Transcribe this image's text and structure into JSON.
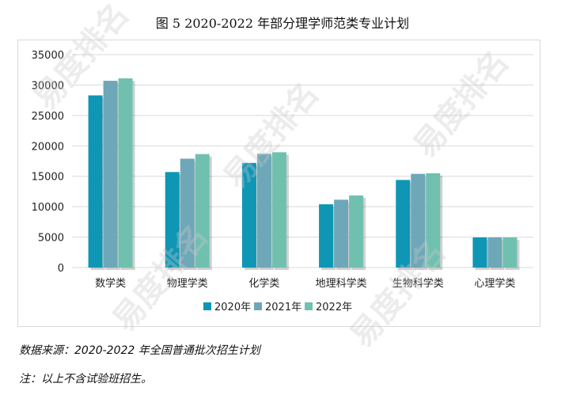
{
  "title": "图 5 2020-2022 年部分理学师范类专业计划",
  "chart_data": {
    "type": "bar",
    "categories": [
      "数学类",
      "物理学类",
      "化学类",
      "地理科学类",
      "生物科学类",
      "心理学类"
    ],
    "series": [
      {
        "name": "2020年",
        "color": "#0f96b4",
        "values": [
          28300,
          15700,
          17200,
          10400,
          14400,
          4950
        ]
      },
      {
        "name": "2021年",
        "color": "#6ea8b8",
        "values": [
          30700,
          17900,
          18700,
          11150,
          15400,
          4950
        ]
      },
      {
        "name": "2022年",
        "color": "#70c0b0",
        "values": [
          31100,
          18650,
          18950,
          11850,
          15500,
          4950
        ]
      }
    ],
    "ylim": [
      0,
      35000
    ],
    "yticks": [
      0,
      5000,
      10000,
      15000,
      20000,
      25000,
      30000,
      35000
    ],
    "grid": true,
    "legend": "bottom"
  },
  "footer": {
    "source": "数据来源：2020-2022 年全国普通批次招生计划",
    "note": "注：以上不含试验班招生。"
  },
  "watermark_text": "易度排名"
}
